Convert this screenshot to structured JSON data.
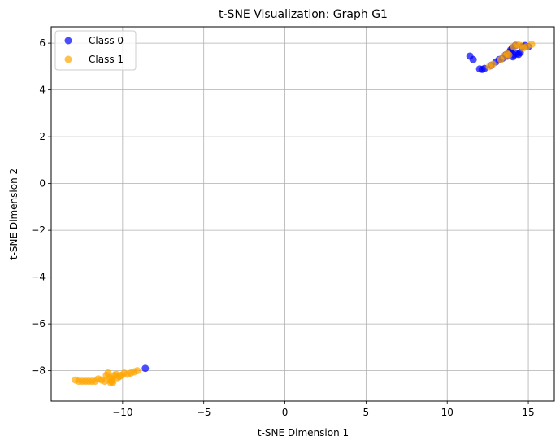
{
  "chart_data": {
    "type": "scatter",
    "title": "t-SNE Visualization: Graph G1",
    "xlabel": "t-SNE Dimension 1",
    "ylabel": "t-SNE Dimension 2",
    "xlim": [
      -14.4,
      16.6
    ],
    "ylim": [
      -9.3,
      6.7
    ],
    "xticks": [
      -10,
      -5,
      0,
      5,
      10,
      15
    ],
    "yticks": [
      -8,
      -6,
      -4,
      -2,
      0,
      2,
      4,
      6
    ],
    "grid": true,
    "legend_position": "top-left",
    "series": [
      {
        "name": "Class 0",
        "color": "#0000ff",
        "points": [
          [
            11.4,
            5.45
          ],
          [
            11.6,
            5.3
          ],
          [
            12.0,
            4.9
          ],
          [
            12.15,
            4.88
          ],
          [
            12.3,
            4.92
          ],
          [
            12.7,
            5.05
          ],
          [
            13.0,
            5.2
          ],
          [
            13.2,
            5.3
          ],
          [
            13.4,
            5.35
          ],
          [
            13.6,
            5.5
          ],
          [
            13.7,
            5.45
          ],
          [
            13.8,
            5.6
          ],
          [
            13.9,
            5.7
          ],
          [
            14.0,
            5.8
          ],
          [
            14.1,
            5.5
          ],
          [
            14.2,
            5.9
          ],
          [
            14.3,
            5.55
          ],
          [
            14.4,
            5.52
          ],
          [
            14.5,
            5.6
          ],
          [
            14.6,
            5.85
          ],
          [
            14.8,
            5.9
          ],
          [
            15.0,
            5.85
          ],
          [
            14.05,
            5.42
          ],
          [
            13.95,
            5.65
          ],
          [
            -8.6,
            -7.9
          ]
        ]
      },
      {
        "name": "Class 1",
        "color": "#ffa500",
        "points": [
          [
            12.6,
            5.0
          ],
          [
            12.8,
            5.1
          ],
          [
            13.3,
            5.3
          ],
          [
            13.5,
            5.45
          ],
          [
            13.8,
            5.5
          ],
          [
            14.1,
            5.85
          ],
          [
            14.3,
            5.95
          ],
          [
            14.5,
            5.9
          ],
          [
            14.7,
            5.8
          ],
          [
            14.9,
            5.85
          ],
          [
            15.2,
            5.95
          ],
          [
            13.7,
            5.55
          ],
          [
            -12.9,
            -8.4
          ],
          [
            -12.7,
            -8.45
          ],
          [
            -12.5,
            -8.45
          ],
          [
            -12.3,
            -8.45
          ],
          [
            -12.1,
            -8.45
          ],
          [
            -11.9,
            -8.45
          ],
          [
            -11.7,
            -8.45
          ],
          [
            -11.5,
            -8.35
          ],
          [
            -11.3,
            -8.4
          ],
          [
            -11.1,
            -8.45
          ],
          [
            -11.0,
            -8.2
          ],
          [
            -10.9,
            -8.1
          ],
          [
            -10.8,
            -8.3
          ],
          [
            -10.7,
            -8.45
          ],
          [
            -10.6,
            -8.5
          ],
          [
            -10.5,
            -8.2
          ],
          [
            -10.4,
            -8.15
          ],
          [
            -10.3,
            -8.3
          ],
          [
            -10.2,
            -8.25
          ],
          [
            -10.1,
            -8.2
          ],
          [
            -9.9,
            -8.1
          ],
          [
            -9.7,
            -8.15
          ],
          [
            -9.5,
            -8.1
          ],
          [
            -9.3,
            -8.05
          ],
          [
            -9.1,
            -8.0
          ],
          [
            -10.75,
            -8.5
          ],
          [
            -10.65,
            -8.35
          ]
        ]
      }
    ]
  }
}
